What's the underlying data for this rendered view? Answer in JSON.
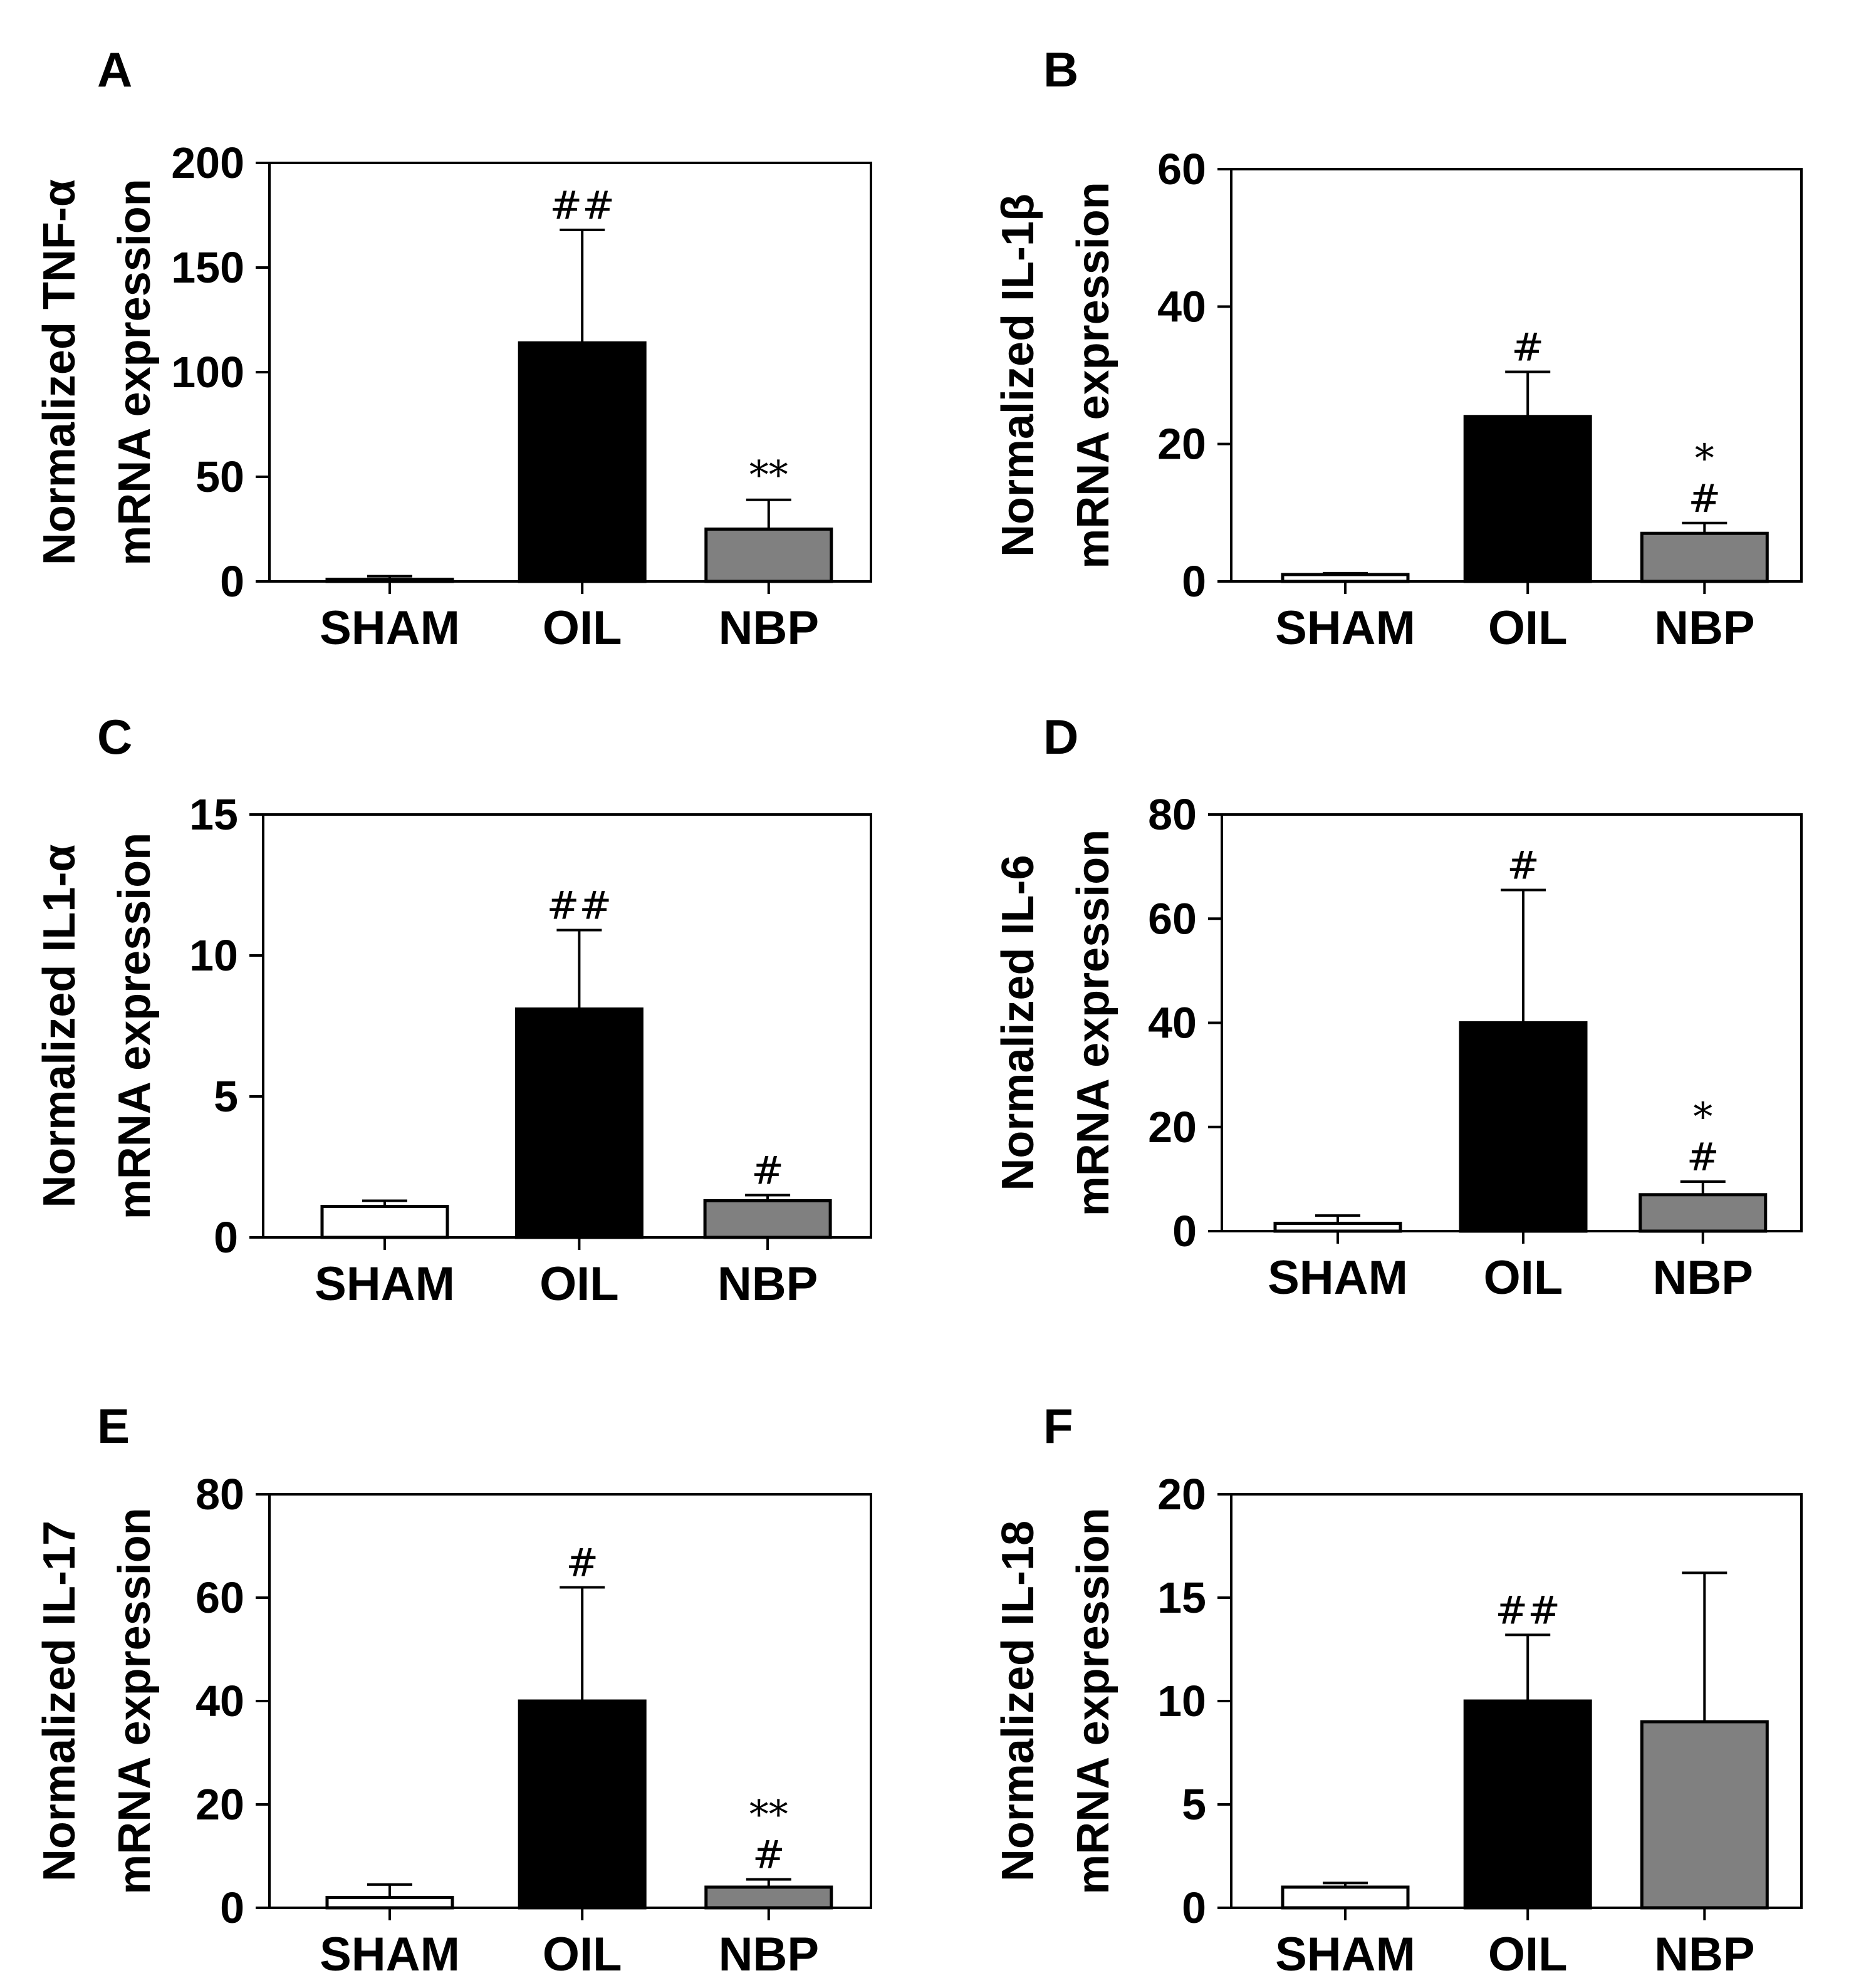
{
  "chart_data": [
    {
      "panel": "A",
      "type": "bar",
      "categories": [
        "SHAM",
        "OIL",
        "NBP"
      ],
      "ylabel_lines": [
        "Normalized TNF-α",
        "mRNA expression"
      ],
      "ticks": [
        "0",
        "50",
        "100",
        "150",
        "200"
      ],
      "ylim": [
        0,
        200
      ],
      "values": [
        1,
        114,
        25
      ],
      "errors": [
        1.5,
        54,
        14
      ],
      "annotations": [
        [],
        [
          "##"
        ],
        [
          "**"
        ]
      ]
    },
    {
      "panel": "B",
      "type": "bar",
      "categories": [
        "SHAM",
        "OIL",
        "NBP"
      ],
      "ylabel_lines": [
        "Normalized IL-1β",
        "mRNA expression"
      ],
      "ticks": [
        "0",
        "20",
        "40",
        "60"
      ],
      "ylim": [
        0,
        60
      ],
      "values": [
        1,
        24,
        7
      ],
      "errors": [
        0.2,
        6.5,
        1.5
      ],
      "annotations": [
        [],
        [
          "#"
        ],
        [
          "#",
          "*"
        ]
      ]
    },
    {
      "panel": "C",
      "type": "bar",
      "categories": [
        "SHAM",
        "OIL",
        "NBP"
      ],
      "ylabel_lines": [
        "Normalized IL1-α",
        "mRNA expression"
      ],
      "ticks": [
        "0",
        "5",
        "10",
        "15"
      ],
      "ylim": [
        0,
        15
      ],
      "values": [
        1.1,
        8.1,
        1.3
      ],
      "errors": [
        0.2,
        2.8,
        0.2
      ],
      "annotations": [
        [],
        [
          "##"
        ],
        [
          "#"
        ]
      ]
    },
    {
      "panel": "D",
      "type": "bar",
      "categories": [
        "SHAM",
        "OIL",
        "NBP"
      ],
      "ylabel_lines": [
        "Normalized IL-6",
        "mRNA expression"
      ],
      "ticks": [
        "0",
        "20",
        "40",
        "60",
        "80"
      ],
      "ylim": [
        0,
        80
      ],
      "values": [
        1.5,
        40,
        7
      ],
      "errors": [
        1.5,
        25.5,
        2.5
      ],
      "annotations": [
        [],
        [
          "#"
        ],
        [
          "#",
          "*"
        ]
      ]
    },
    {
      "panel": "E",
      "type": "bar",
      "categories": [
        "SHAM",
        "OIL",
        "NBP"
      ],
      "ylabel_lines": [
        "Normalized IL-17",
        "mRNA expression"
      ],
      "ticks": [
        "0",
        "20",
        "40",
        "60",
        "80"
      ],
      "ylim": [
        0,
        80
      ],
      "values": [
        2,
        40,
        4
      ],
      "errors": [
        2.5,
        22,
        1.5
      ],
      "annotations": [
        [],
        [
          "#"
        ],
        [
          "#",
          "**"
        ]
      ]
    },
    {
      "panel": "F",
      "type": "bar",
      "categories": [
        "SHAM",
        "OIL",
        "NBP"
      ],
      "ylabel_lines": [
        "Normalized IL-18",
        "mRNA expression"
      ],
      "ticks": [
        "0",
        "5",
        "10",
        "15",
        "20"
      ],
      "ylim": [
        0,
        20
      ],
      "values": [
        1,
        10,
        9
      ],
      "errors": [
        0.2,
        3.2,
        7.2
      ],
      "annotations": [
        [],
        [
          "##"
        ],
        []
      ]
    }
  ],
  "colors": {
    "SHAM": "#ffffff",
    "OIL": "#000000",
    "NBP": "#808080",
    "axis": "#000000"
  }
}
